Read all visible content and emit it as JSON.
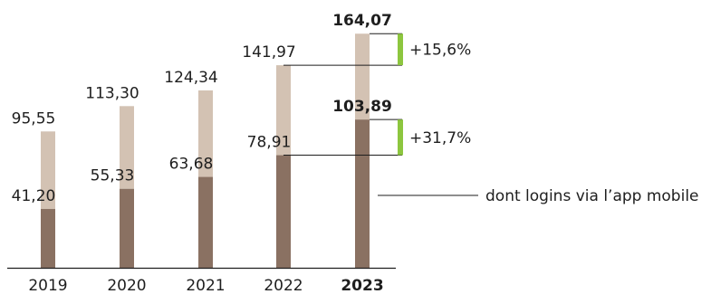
{
  "chart_data": {
    "type": "bar",
    "stacked": true,
    "categories": [
      "2019",
      "2020",
      "2021",
      "2022",
      "2023"
    ],
    "highlight_category": "2023",
    "series": [
      {
        "name": "dont logins via l’app mobile",
        "values": [
          41.2,
          55.33,
          63.68,
          78.91,
          103.89
        ],
        "labels": [
          "41,20",
          "55,33",
          "63,68",
          "78,91",
          "103,89"
        ]
      }
    ],
    "totals": [
      95.55,
      113.3,
      124.34,
      141.97,
      164.07
    ],
    "total_labels": [
      "95,55",
      "113,30",
      "124,34",
      "141,97",
      "164,07"
    ],
    "annotations": [
      {
        "label": "+15,6%",
        "from_total_of": "2022",
        "to_total_of": "2023"
      },
      {
        "label": "+31,7%",
        "from_mobile_of": "2022",
        "to_mobile_of": "2023"
      }
    ],
    "ylim": [
      0,
      175
    ],
    "grid": false,
    "title": "",
    "xlabel": "",
    "ylabel": "",
    "colors": {
      "mobile": "#8a7162",
      "total": "#d3c2b3",
      "accent": "#8dc63f",
      "line": "#1e1e1e"
    }
  }
}
